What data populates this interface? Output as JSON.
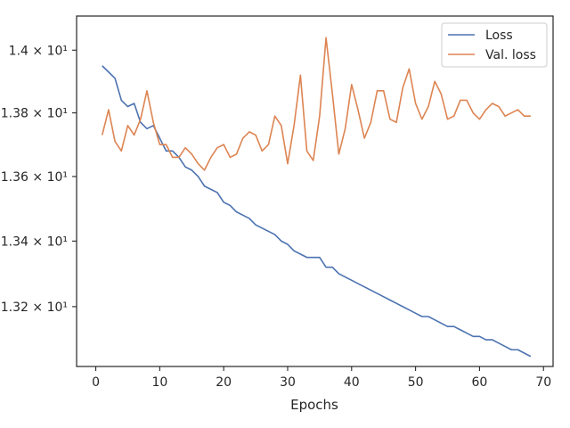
{
  "chart_data": {
    "type": "line",
    "title": "",
    "xlabel": "Epochs",
    "ylabel": "",
    "xlim": [
      -3,
      71.5
    ],
    "ylim": [
      13.02,
      14.11
    ],
    "x_ticks": [
      0,
      10,
      20,
      30,
      40,
      50,
      60,
      70
    ],
    "x_tick_labels": [
      "0",
      "10",
      "20",
      "30",
      "40",
      "50",
      "60",
      "70"
    ],
    "y_ticks": [
      13.2,
      13.4,
      13.6,
      13.8,
      14.0
    ],
    "y_tick_labels": [
      "1.32 × 10¹",
      "1.34 × 10¹",
      "1.36 × 10¹",
      "1.38 × 10¹",
      "1.4 × 10¹"
    ],
    "y_scale": "log",
    "grid": false,
    "legend_position": "top-right",
    "x": [
      1,
      2,
      3,
      4,
      5,
      6,
      7,
      8,
      9,
      10,
      11,
      12,
      13,
      14,
      15,
      16,
      17,
      18,
      19,
      20,
      21,
      22,
      23,
      24,
      25,
      26,
      27,
      28,
      29,
      30,
      31,
      32,
      33,
      34,
      35,
      36,
      37,
      38,
      39,
      40,
      41,
      42,
      43,
      44,
      45,
      46,
      47,
      48,
      49,
      50,
      51,
      52,
      53,
      54,
      55,
      56,
      57,
      58,
      59,
      60,
      61,
      62,
      63,
      64,
      65,
      66,
      67,
      68
    ],
    "series": [
      {
        "name": "Loss",
        "color": "#4c72b0",
        "values": [
          13.95,
          13.93,
          13.91,
          13.84,
          13.82,
          13.83,
          13.77,
          13.75,
          13.76,
          13.72,
          13.68,
          13.68,
          13.66,
          13.63,
          13.62,
          13.6,
          13.57,
          13.56,
          13.55,
          13.52,
          13.51,
          13.49,
          13.48,
          13.47,
          13.45,
          13.44,
          13.43,
          13.42,
          13.4,
          13.39,
          13.37,
          13.36,
          13.35,
          13.35,
          13.35,
          13.32,
          13.32,
          13.3,
          13.29,
          13.28,
          13.27,
          13.26,
          13.25,
          13.24,
          13.23,
          13.22,
          13.21,
          13.2,
          13.19,
          13.18,
          13.17,
          13.17,
          13.16,
          13.15,
          13.14,
          13.14,
          13.13,
          13.12,
          13.11,
          13.11,
          13.1,
          13.1,
          13.09,
          13.08,
          13.07,
          13.07,
          13.06,
          13.05
        ]
      },
      {
        "name": "Val. loss",
        "color": "#dd8452",
        "values": [
          13.73,
          13.81,
          13.71,
          13.68,
          13.76,
          13.73,
          13.78,
          13.87,
          13.77,
          13.7,
          13.7,
          13.66,
          13.66,
          13.69,
          13.67,
          13.64,
          13.62,
          13.66,
          13.69,
          13.7,
          13.66,
          13.67,
          13.72,
          13.74,
          13.73,
          13.68,
          13.7,
          13.79,
          13.76,
          13.64,
          13.76,
          13.92,
          13.68,
          13.65,
          13.79,
          14.04,
          13.86,
          13.67,
          13.75,
          13.89,
          13.81,
          13.72,
          13.77,
          13.87,
          13.87,
          13.78,
          13.77,
          13.88,
          13.94,
          13.83,
          13.78,
          13.82,
          13.9,
          13.86,
          13.78,
          13.79,
          13.84,
          13.84,
          13.8,
          13.78,
          13.81,
          13.83,
          13.82,
          13.79,
          13.8,
          13.81,
          13.79,
          13.79
        ]
      }
    ]
  }
}
